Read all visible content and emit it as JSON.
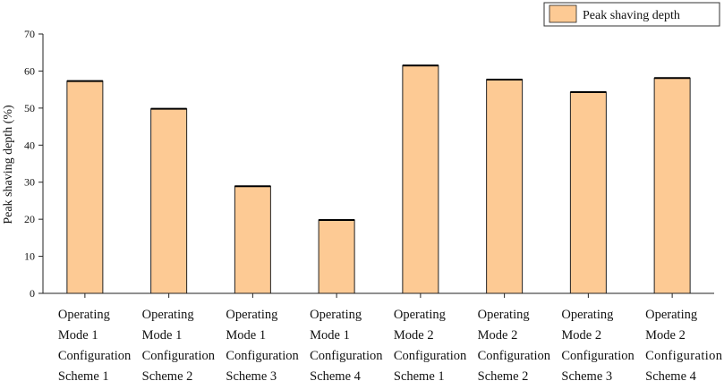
{
  "chart_data": {
    "type": "bar",
    "categories": [
      [
        "Operating",
        "Mode 1",
        "Configuration",
        "Scheme 1"
      ],
      [
        "Operating",
        "Mode 1",
        "Configuration",
        "Scheme 2"
      ],
      [
        "Operating",
        "Mode 1",
        "Configuration",
        "Scheme 3"
      ],
      [
        "Operating",
        "Mode 1",
        "Configuration",
        "Scheme 4"
      ],
      [
        "Operating",
        "Mode 2",
        "Configuration",
        "Scheme 1"
      ],
      [
        "Operating",
        "Mode 2",
        "Configuration",
        "Scheme 2"
      ],
      [
        "Operating",
        "Mode 2",
        "Configuration",
        "Scheme 3"
      ],
      [
        "Operating",
        "Mode 2",
        "Configuration",
        "Scheme 4"
      ]
    ],
    "series": [
      {
        "name": "Peak shaving depth",
        "values": [
          57.3,
          49.8,
          28.9,
          19.8,
          61.5,
          57.7,
          54.3,
          58.1
        ]
      }
    ],
    "title": "",
    "xlabel": "",
    "ylabel": "Peak shaving depth (%)",
    "ylim": [
      0,
      70
    ],
    "yticks": [
      0,
      10,
      20,
      30,
      40,
      50,
      60,
      70
    ],
    "grid": false,
    "legend_position": "top-right",
    "bar_color": "#fdca94",
    "bar_edge_color": "#222222"
  }
}
